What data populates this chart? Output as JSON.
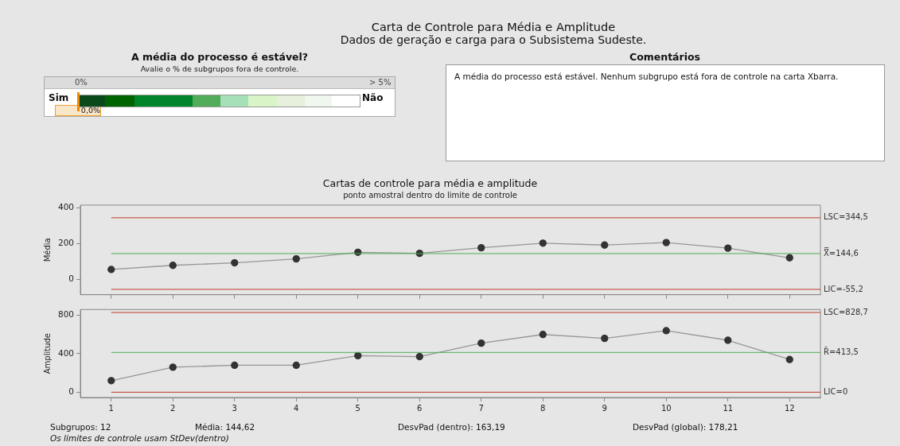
{
  "chart_data": [
    {
      "type": "other",
      "title": "Carta de Controle para Média e Amplitude",
      "subtitle": "Dados de geração e carga para o Subsistema Sudeste."
    },
    {
      "type": "other",
      "title": "A média do processo é estável?",
      "subtitle": "Avalie o % de subgrupos fora de controle.",
      "annotations": [
        "0%",
        "> 5%",
        "Sim",
        "Não",
        "0,0%"
      ]
    },
    {
      "type": "other",
      "title": "Comentários",
      "annotations": [
        "A média do processo está estável. Nenhum subgrupo está fora de controle na carta Xbarra."
      ]
    },
    {
      "type": "line",
      "title": "Cartas de controle para média e amplitude",
      "subtitle": "ponto amostral dentro do limite de controle",
      "ylabel": "Média",
      "categories": [
        "1",
        "2",
        "3",
        "4",
        "5",
        "6",
        "7",
        "8",
        "9",
        "10",
        "11",
        "12"
      ],
      "series": [
        {
          "color": "#333333",
          "values": [
            56,
            79,
            93,
            115,
            152,
            146,
            177,
            203,
            192,
            206,
            175,
            121
          ]
        }
      ],
      "ylim": [
        -85,
        415
      ],
      "yticks": [
        0,
        200,
        400
      ],
      "grid": false,
      "legend": false,
      "marker": "circle",
      "tick_labels": "y",
      "ref_lines": [
        {
          "axis": "y",
          "value": 344.5,
          "label": "LSC=344,5",
          "color": "#c0392b"
        },
        {
          "axis": "y",
          "value": 144.6,
          "label": "X̿=144,6",
          "color": "#4caf50"
        },
        {
          "axis": "y",
          "value": -55.2,
          "label": "LIC=-55,2",
          "color": "#c0392b"
        }
      ]
    },
    {
      "type": "line",
      "ylabel": "Amplitude",
      "categories": [
        "1",
        "2",
        "3",
        "4",
        "5",
        "6",
        "7",
        "8",
        "9",
        "10",
        "11",
        "12"
      ],
      "series": [
        {
          "color": "#333333",
          "values": [
            120,
            260,
            280,
            280,
            380,
            370,
            510,
            600,
            560,
            640,
            540,
            340
          ]
        }
      ],
      "ylim": [
        -55,
        860
      ],
      "yticks": [
        0,
        400,
        800
      ],
      "grid": false,
      "legend": false,
      "marker": "circle",
      "ref_lines": [
        {
          "axis": "y",
          "value": 828.7,
          "label": "LSC=828,7",
          "color": "#c0392b"
        },
        {
          "axis": "y",
          "value": 413.5,
          "label": "R̄=413,5",
          "color": "#4caf50"
        },
        {
          "axis": "y",
          "value": 0,
          "label": "LIC=0",
          "color": "#c0392b"
        }
      ],
      "annotations": [
        "Subgrupos: 12",
        "Média: 144,62",
        "DesvPad (dentro): 163,19",
        "DesvPad (global): 178,21",
        "Os limites de controle usam StDev(dentro)"
      ]
    }
  ]
}
